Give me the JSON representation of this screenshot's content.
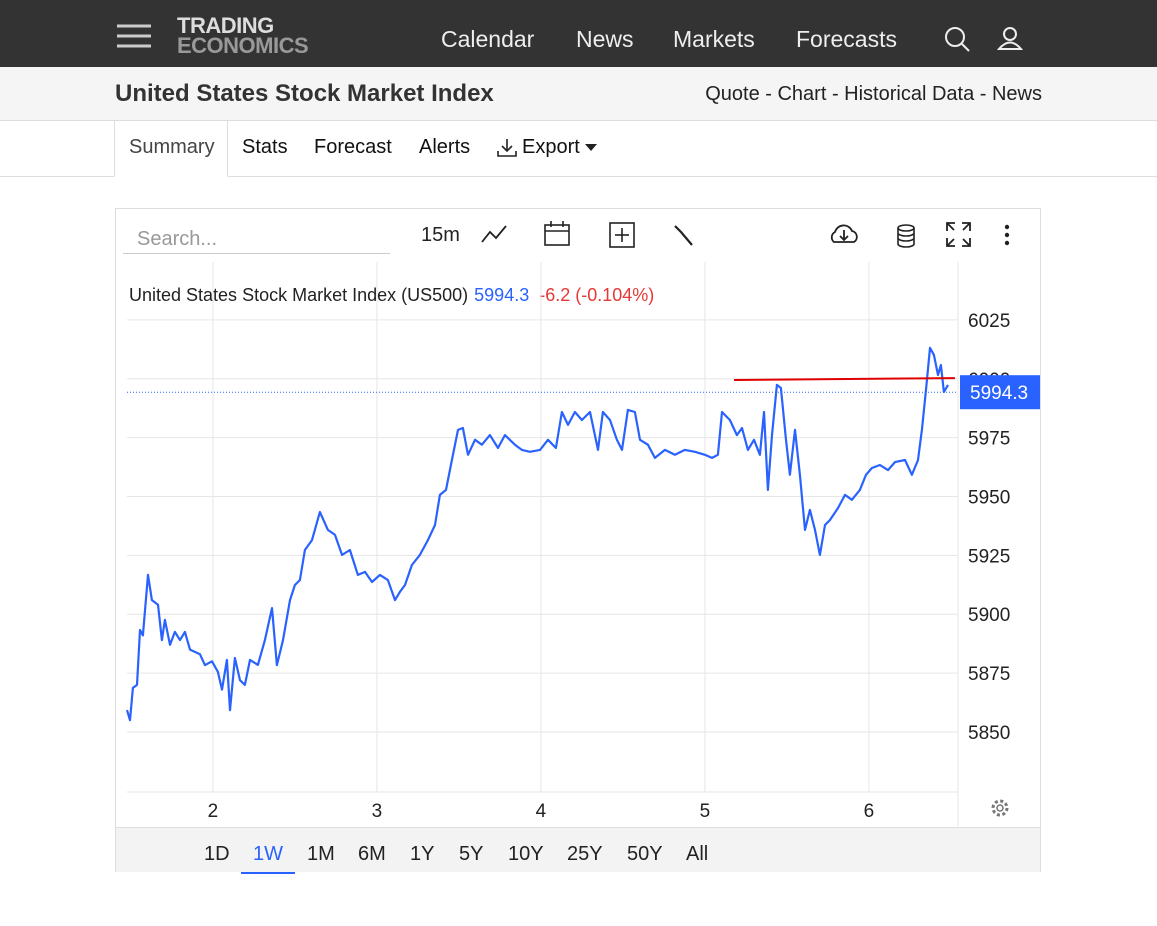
{
  "header": {
    "logo": [
      "TRADING",
      "ECONOMICS"
    ],
    "nav": [
      "Calendar",
      "News",
      "Markets",
      "Forecasts"
    ]
  },
  "subheader": {
    "title": "United States Stock Market Index",
    "links": "Quote - Chart - Historical Data - News"
  },
  "tabs": [
    "Summary",
    "Stats",
    "Forecast",
    "Alerts",
    "Export"
  ],
  "toolbar": {
    "search_placeholder": "Search...",
    "interval": "15m"
  },
  "chart_data": {
    "type": "line",
    "title": "United States Stock Market Index (US500)",
    "last_value": 5994.3,
    "change_label": "-6.2 (-0.104%)",
    "change_color": "#e53935",
    "value_color": "#2962ff",
    "x": [
      1.476,
      1.494,
      1.512,
      1.537,
      1.555,
      1.573,
      1.604,
      1.628,
      1.665,
      1.689,
      1.707,
      1.738,
      1.768,
      1.799,
      1.829,
      1.86,
      1.921,
      1.951,
      1.994,
      2.03,
      2.055,
      2.085,
      2.104,
      2.134,
      2.165,
      2.195,
      2.226,
      2.274,
      2.317,
      2.36,
      2.39,
      2.427,
      2.47,
      2.5,
      2.53,
      2.561,
      2.604,
      2.652,
      2.701,
      2.744,
      2.787,
      2.835,
      2.884,
      2.927,
      2.97,
      3.018,
      3.067,
      3.11,
      3.14,
      3.171,
      3.213,
      3.262,
      3.311,
      3.354,
      3.384,
      3.421,
      3.457,
      3.494,
      3.524,
      3.555,
      3.598,
      3.64,
      3.689,
      3.738,
      3.78,
      3.841,
      3.884,
      3.933,
      3.994,
      4.043,
      4.091,
      4.128,
      4.165,
      4.207,
      4.25,
      4.299,
      4.348,
      4.378,
      4.421,
      4.463,
      4.494,
      4.53,
      4.573,
      4.604,
      4.652,
      4.695,
      4.756,
      4.817,
      4.878,
      4.939,
      5.0,
      5.043,
      5.079,
      5.104,
      5.152,
      5.195,
      5.226,
      5.262,
      5.299,
      5.335,
      5.36,
      5.384,
      5.409,
      5.439,
      5.463,
      5.494,
      5.518,
      5.549,
      5.579,
      5.61,
      5.64,
      5.671,
      5.701,
      5.732,
      5.762,
      5.811,
      5.854,
      5.896,
      5.945,
      5.982,
      6.018,
      6.067,
      6.116,
      6.159,
      6.22,
      6.262,
      6.299,
      6.323,
      6.348,
      6.372,
      6.396,
      6.421,
      6.439,
      6.457,
      6.482
    ],
    "series": [
      {
        "color": "#2962ff",
        "values": [
          5859.3,
          5855,
          5868.7,
          5870,
          5893.3,
          5891,
          5916.7,
          5906,
          5904,
          5889,
          5897.6,
          5887,
          5892.5,
          5889,
          5892.5,
          5885,
          5883,
          5878.4,
          5880,
          5875.5,
          5868,
          5880.6,
          5859.3,
          5881.4,
          5872,
          5870,
          5880.6,
          5878.5,
          5889,
          5902.6,
          5878.4,
          5889,
          5906,
          5912.4,
          5914.5,
          5927.3,
          5931.5,
          5943.4,
          5935.8,
          5933.7,
          5925.2,
          5927.3,
          5916.7,
          5918,
          5913.7,
          5916.7,
          5914.5,
          5906,
          5909.5,
          5912.4,
          5920.9,
          5925.2,
          5931.5,
          5937.9,
          5950.7,
          5952.8,
          5965.5,
          5978.3,
          5979.1,
          5967.7,
          5974.1,
          5972,
          5976.1,
          5970.6,
          5976.1,
          5972,
          5969.8,
          5969,
          5969.8,
          5974.1,
          5970.6,
          5985.9,
          5980.4,
          5985.9,
          5982.5,
          5985.9,
          5969.8,
          5985.9,
          5982.5,
          5974.1,
          5969.8,
          5986.8,
          5985.9,
          5974.1,
          5972,
          5966.4,
          5969.8,
          5967.7,
          5969.8,
          5969,
          5967.7,
          5966.4,
          5967.7,
          5985.9,
          5982.5,
          5976.1,
          5979.1,
          5969.8,
          5974.1,
          5967.7,
          5985.9,
          5952.8,
          5976.1,
          5997.4,
          5996.1,
          5974.1,
          5959.2,
          5978.3,
          5959.2,
          5935.8,
          5944.3,
          5935.8,
          5925.2,
          5937.9,
          5940,
          5945.1,
          5950.7,
          5948.6,
          5952.8,
          5959.2,
          5962.1,
          5963.4,
          5961.2,
          5964.6,
          5965.5,
          5959.2,
          5965.5,
          5978.3,
          5995.3,
          6013.1,
          6010.2,
          6001.6,
          6005.8,
          5994.4,
          5997.4
        ]
      }
    ],
    "reference_line": {
      "color": "#e00000",
      "x": [
        5.177,
        6.524
      ],
      "values": [
        5999.5,
        6000.3
      ]
    },
    "xlim": [
      1.476,
      6.543
    ],
    "ylim": [
      5824.5,
      6049.6
    ],
    "xticks": [
      2,
      3,
      4,
      5,
      6
    ],
    "yticks": [
      5850,
      5875,
      5900,
      5925,
      5950,
      5975,
      6000,
      6025
    ],
    "grid": true
  },
  "ranges": [
    "1D",
    "1W",
    "1M",
    "6M",
    "1Y",
    "5Y",
    "10Y",
    "25Y",
    "50Y",
    "All"
  ],
  "active_range": 1
}
